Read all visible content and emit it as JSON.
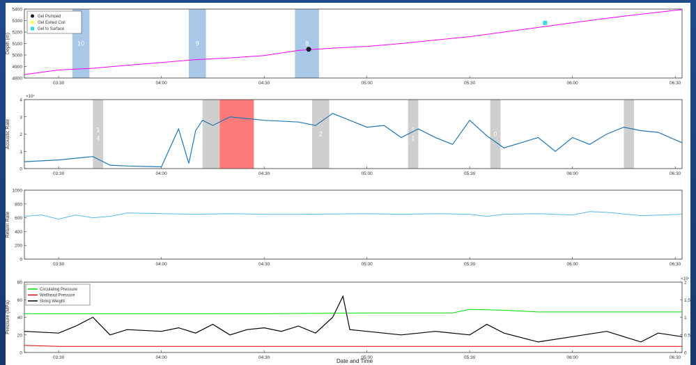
{
  "figure": {
    "x_axis_label": "Date and Time"
  },
  "chart_data": [
    {
      "type": "line",
      "panel": "depth",
      "ylabel": "Depth (m)",
      "ylim": [
        4800,
        5400
      ],
      "yticks": [
        4800,
        4900,
        5000,
        5100,
        5200,
        5300,
        5400
      ],
      "xlim": [
        "03:20",
        "06:32"
      ],
      "xticks": [
        "03:30",
        "04:00",
        "04:30",
        "05:00",
        "05:30",
        "06:00",
        "06:30"
      ],
      "series": [
        {
          "color": "#ff00ff",
          "x": [
            "03:20",
            "03:30",
            "03:40",
            "03:50",
            "04:00",
            "04:10",
            "04:20",
            "04:30",
            "04:40",
            "04:50",
            "05:00",
            "05:10",
            "05:20",
            "05:30",
            "05:40",
            "05:50",
            "06:00",
            "06:10",
            "06:20",
            "06:32"
          ],
          "y": [
            4830,
            4870,
            4885,
            4910,
            4935,
            4960,
            4975,
            4995,
            5040,
            5060,
            5075,
            5100,
            5130,
            5160,
            5200,
            5240,
            5280,
            5320,
            5355,
            5395
          ]
        }
      ],
      "legend": {
        "position": "top-left",
        "entries": [
          {
            "label": "Gel Pumped",
            "color": "#1a1a2e",
            "marker": "circle"
          },
          {
            "label": "Gel Exited Coil",
            "color": "#ffff44",
            "marker": "circle"
          },
          {
            "label": "Gel to Surface",
            "color": "#33dddd",
            "marker": "square"
          }
        ]
      },
      "markers": [
        {
          "kind": "Gel Pumped",
          "x": "04:43",
          "y": 5050
        },
        {
          "kind": "Gel to Surface",
          "x": "05:52",
          "y": 5280
        }
      ],
      "shaded_bands": [
        {
          "label": "10",
          "start": "03:34",
          "end": "03:39",
          "color": "#a9c7e6"
        },
        {
          "label": "9",
          "start": "04:08",
          "end": "04:13",
          "color": "#a9c7e6"
        },
        {
          "label": "8",
          "start": "04:39",
          "end": "04:46",
          "color": "#a9c7e6"
        }
      ]
    },
    {
      "type": "line",
      "panel": "acoustic",
      "ylabel": "Acoustic Rate",
      "exponent_label": "×10⁴",
      "ylim": [
        0,
        4
      ],
      "yticks": [
        0,
        1,
        2,
        3,
        4
      ],
      "xticks": [
        "03:30",
        "04:00",
        "04:30",
        "05:00",
        "05:30",
        "06:00",
        "06:30"
      ],
      "series": [
        {
          "color": "#1f77b4",
          "x": [
            "03:20",
            "03:30",
            "03:40",
            "03:45",
            "03:50",
            "04:00",
            "04:05",
            "04:08",
            "04:10",
            "04:12",
            "04:15",
            "04:20",
            "04:30",
            "04:40",
            "04:45",
            "04:50",
            "05:00",
            "05:05",
            "05:10",
            "05:15",
            "05:20",
            "05:25",
            "05:30",
            "05:35",
            "05:40",
            "05:45",
            "05:50",
            "05:55",
            "06:00",
            "06:05",
            "06:10",
            "06:15",
            "06:20",
            "06:25",
            "06:32"
          ],
          "y": [
            0.4,
            0.5,
            0.7,
            0.2,
            0.15,
            0.1,
            2.3,
            0.3,
            2.2,
            2.8,
            2.5,
            3.0,
            2.8,
            2.7,
            2.5,
            3.2,
            2.4,
            2.5,
            1.8,
            2.3,
            1.8,
            1.4,
            2.8,
            1.9,
            1.2,
            1.5,
            1.8,
            1.0,
            1.8,
            1.4,
            2.0,
            2.4,
            2.2,
            2.1,
            1.5
          ]
        }
      ],
      "highlight_region": {
        "start": "04:17",
        "end": "04:27",
        "color": "#ff7b7b"
      },
      "shaded_bands": [
        {
          "label": "1 4",
          "start": "03:40",
          "end": "03:43"
        },
        {
          "label": "",
          "start": "04:12",
          "end": "04:17"
        },
        {
          "label": "2",
          "start": "04:44",
          "end": "04:49"
        },
        {
          "label": "1 1",
          "start": "05:12",
          "end": "05:15"
        },
        {
          "label": "0",
          "start": "05:36",
          "end": "05:39"
        },
        {
          "label": "",
          "start": "06:15",
          "end": "06:18"
        }
      ]
    },
    {
      "type": "line",
      "panel": "return",
      "ylabel": "Return Rate",
      "ylim": [
        0,
        1000
      ],
      "yticks": [
        0,
        200,
        400,
        600,
        800,
        1000
      ],
      "xticks": [
        "03:30",
        "04:00",
        "04:30",
        "05:00",
        "05:30",
        "06:00",
        "06:30"
      ],
      "series": [
        {
          "color": "#5bb8e8",
          "x": [
            "03:20",
            "03:25",
            "03:30",
            "03:35",
            "03:40",
            "03:45",
            "03:50",
            "04:00",
            "04:10",
            "04:20",
            "04:30",
            "04:40",
            "04:50",
            "05:00",
            "05:10",
            "05:20",
            "05:30",
            "05:35",
            "05:40",
            "05:50",
            "06:00",
            "06:05",
            "06:10",
            "06:20",
            "06:32"
          ],
          "y": [
            620,
            640,
            580,
            640,
            600,
            620,
            670,
            660,
            650,
            660,
            650,
            650,
            655,
            660,
            650,
            660,
            650,
            620,
            650,
            660,
            640,
            690,
            680,
            630,
            650
          ]
        }
      ]
    },
    {
      "type": "line",
      "panel": "pressure",
      "ylabel": "Pressure (MPa)",
      "ylim": [
        0,
        80
      ],
      "yticks": [
        0,
        20,
        40,
        60,
        80
      ],
      "right_axis": {
        "ylim": [
          0,
          2
        ],
        "yticks": [
          0,
          0.5,
          1,
          1.5,
          2
        ],
        "exponent_label": "×10⁴"
      },
      "xlabel": "Date and Time",
      "xticks": [
        "03:30",
        "04:00",
        "04:30",
        "05:00",
        "05:30",
        "06:00",
        "06:30"
      ],
      "legend": {
        "position": "top-left"
      },
      "series": [
        {
          "name": "Circulating Pressure",
          "color": "#00e000",
          "x": [
            "03:20",
            "04:00",
            "04:30",
            "05:00",
            "05:25",
            "05:30",
            "05:40",
            "05:50",
            "06:00",
            "06:32"
          ],
          "y": [
            44,
            44,
            44,
            45,
            45,
            49,
            48,
            46,
            46,
            46
          ]
        },
        {
          "name": "Wellhead Pressure",
          "color": "#e00000",
          "x": [
            "03:20",
            "03:30",
            "04:00",
            "04:30",
            "05:00",
            "05:30",
            "06:00",
            "06:32"
          ],
          "y": [
            8,
            7,
            7,
            7,
            7,
            7,
            7,
            7
          ]
        },
        {
          "name": "String Weight",
          "color": "#000000",
          "x": [
            "03:20",
            "03:30",
            "03:35",
            "03:40",
            "03:45",
            "03:50",
            "04:00",
            "04:05",
            "04:10",
            "04:15",
            "04:20",
            "04:25",
            "04:30",
            "04:35",
            "04:40",
            "04:45",
            "04:50",
            "04:53",
            "04:55",
            "05:00",
            "05:10",
            "05:20",
            "05:30",
            "05:35",
            "05:40",
            "05:50",
            "06:00",
            "06:10",
            "06:20",
            "06:25",
            "06:32"
          ],
          "y": [
            0.6,
            0.55,
            0.75,
            1.0,
            0.5,
            0.65,
            0.6,
            0.7,
            0.55,
            0.8,
            0.5,
            0.65,
            0.7,
            0.6,
            0.75,
            0.55,
            1.0,
            1.6,
            0.65,
            0.6,
            0.5,
            0.6,
            0.5,
            0.8,
            0.55,
            0.3,
            0.45,
            0.6,
            0.3,
            0.55,
            0.45
          ]
        }
      ]
    }
  ]
}
